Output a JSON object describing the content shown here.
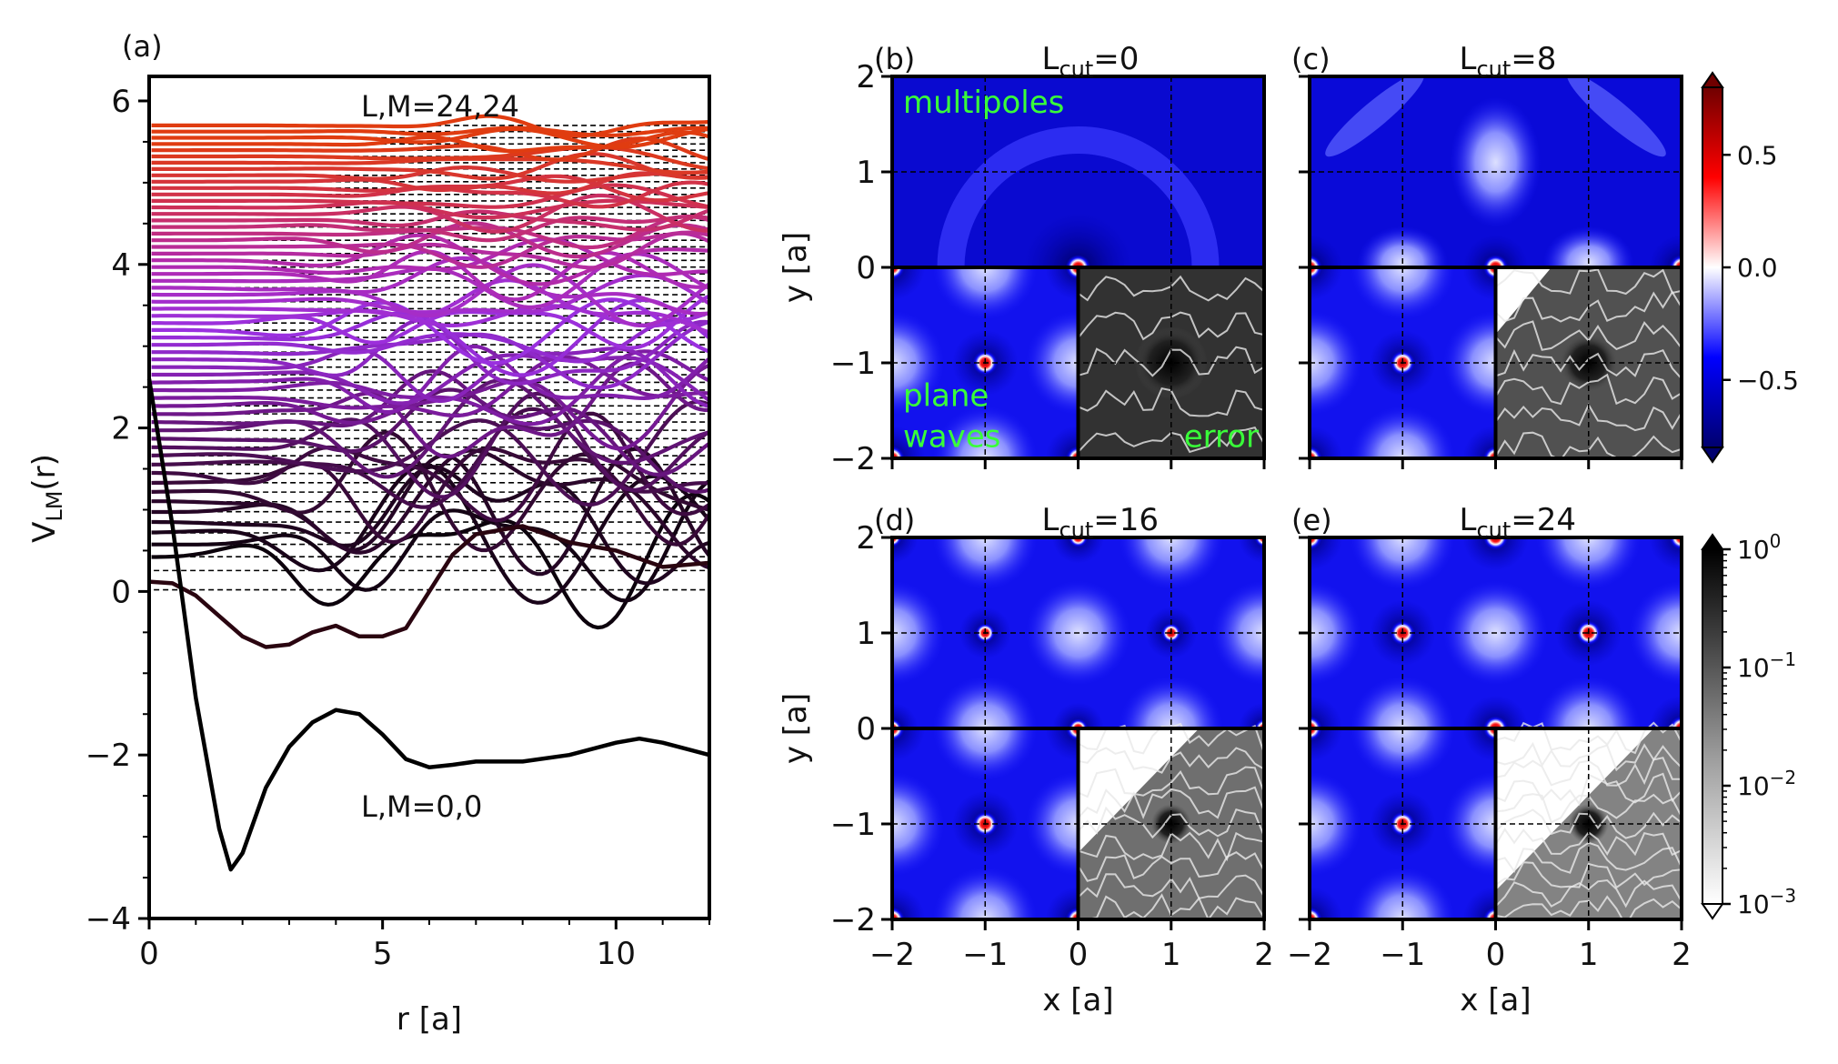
{
  "chart_data": [
    {
      "panel_label": "(a)",
      "type": "line",
      "xlabel": "r [a]",
      "ylabel": "V",
      "ylabel_sub": "LM",
      "ylabel_suffix": "(r)",
      "xlim": [
        0,
        12
      ],
      "ylim": [
        -4,
        6.3
      ],
      "xticks": [
        0,
        5,
        10
      ],
      "xtick_labels": [
        "0",
        "5",
        "10"
      ],
      "yticks": [
        -4,
        -2,
        0,
        2,
        4,
        6
      ],
      "ytick_labels": [
        "−4",
        "−2",
        "0",
        "2",
        "4",
        "6"
      ],
      "annotation_top": "L,M=24,24",
      "annotation_bottom": "L,M=0,0",
      "colormap": [
        "#000000",
        "#3a0a3a",
        "#7a1a9a",
        "#9a30e0",
        "#b02ab0",
        "#d03050",
        "#e03c10"
      ],
      "series": [
        {
          "x": [
            0,
            0.5,
            1,
            1.5,
            1.75,
            2,
            2.5,
            3,
            3.5,
            4,
            4.5,
            5,
            5.5,
            6,
            6.5,
            7,
            8,
            9,
            10,
            10.5,
            11,
            12
          ],
          "y": [
            2.6,
            0.8,
            -1.3,
            -2.9,
            -3.4,
            -3.2,
            -2.4,
            -1.9,
            -1.6,
            -1.45,
            -1.5,
            -1.75,
            -2.05,
            -2.15,
            -2.12,
            -2.08,
            -2.08,
            -2.0,
            -1.85,
            -1.8,
            -1.85,
            -2.0
          ]
        },
        {
          "x": [
            0,
            0.5,
            1,
            1.5,
            2,
            2.5,
            3,
            3.5,
            4,
            4.5,
            5,
            5.5,
            6,
            6.5,
            7,
            8,
            9,
            10,
            11,
            12
          ],
          "y": [
            0.12,
            0.1,
            -0.05,
            -0.3,
            -0.55,
            -0.68,
            -0.65,
            -0.5,
            -0.42,
            -0.55,
            -0.55,
            -0.45,
            0.0,
            0.45,
            0.7,
            0.8,
            0.6,
            0.5,
            0.3,
            0.35
          ]
        }
      ]
    },
    {
      "panel_label": "(b)",
      "title": "L",
      "title_sub": "cut",
      "title_suffix": "=0",
      "label_top": "multipoles",
      "label_bottom": [
        "plane",
        "waves"
      ],
      "label_error": "error",
      "xlim": [
        -2,
        2
      ],
      "ylim": [
        -2,
        2
      ],
      "ticks": [
        -2,
        -1,
        0,
        1,
        2
      ],
      "ylabel": "y [a]",
      "xlabel": "",
      "top_type": "multipole_L0",
      "error_level": 0.75
    },
    {
      "panel_label": "(c)",
      "title": "L",
      "title_sub": "cut",
      "title_suffix": "=8",
      "xlim": [
        -2,
        2
      ],
      "ylim": [
        -2,
        2
      ],
      "ticks": [
        -2,
        -1,
        0,
        1,
        2
      ],
      "ylabel": "",
      "xlabel": "",
      "top_type": "multipole_L8",
      "error_level": 0.55
    },
    {
      "panel_label": "(d)",
      "title": "L",
      "title_sub": "cut",
      "title_suffix": "=16",
      "xlim": [
        -2,
        2
      ],
      "ylim": [
        -2,
        2
      ],
      "ticks": [
        -2,
        -1,
        0,
        1,
        2
      ],
      "ylabel": "y [a]",
      "xlabel": "x [a]",
      "top_type": "multipole_L16",
      "error_level": 0.35
    },
    {
      "panel_label": "(e)",
      "title": "L",
      "title_sub": "cut",
      "title_suffix": "=24",
      "xlim": [
        -2,
        2
      ],
      "ylim": [
        -2,
        2
      ],
      "ticks": [
        -2,
        -1,
        0,
        1,
        2
      ],
      "ylabel": "",
      "xlabel": "x [a]",
      "top_type": "multipole_L24",
      "error_level": 0.22
    }
  ],
  "tick_labels": [
    "−2",
    "−1",
    "0",
    "1",
    "2"
  ],
  "colorbar_potential": {
    "ticks": [
      0.5,
      0.0,
      -0.5
    ],
    "tick_labels": [
      "0.5",
      "0.0",
      "−0.5"
    ],
    "range": [
      -0.8,
      0.8
    ],
    "colors": [
      "#00006e",
      "#0000ff",
      "#ffffff",
      "#ff0000",
      "#700000"
    ]
  },
  "colorbar_error": {
    "scale": "log",
    "range": [
      0.001,
      1
    ],
    "tick_exponents": [
      "0",
      "−1",
      "−2",
      "−3"
    ]
  }
}
